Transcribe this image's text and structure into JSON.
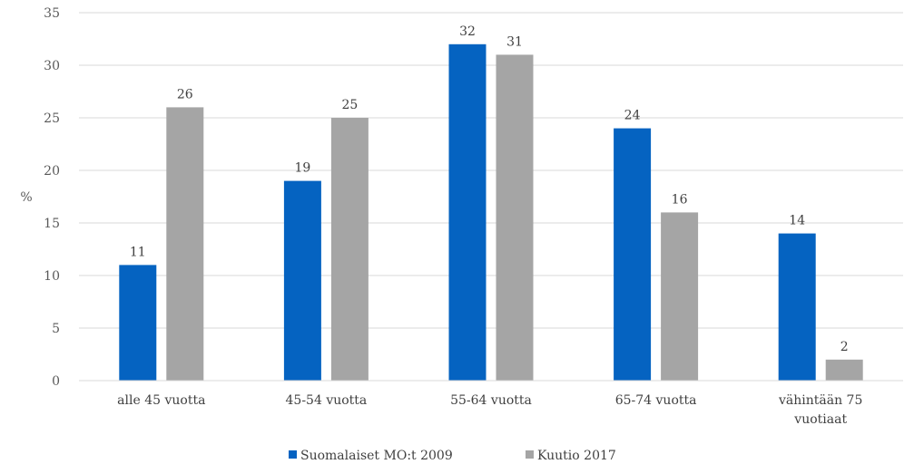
{
  "chart_data": {
    "type": "bar",
    "ylabel": "%",
    "ylim": [
      0,
      35
    ],
    "yticks": [
      0,
      5,
      10,
      15,
      20,
      25,
      30,
      35
    ],
    "grid": true,
    "legend_position": "bottom",
    "categories": [
      [
        "alle 45 vuotta"
      ],
      [
        "45-54 vuotta"
      ],
      [
        "55-64 vuotta"
      ],
      [
        "65-74 vuotta"
      ],
      [
        "vähintään 75",
        "vuotiaat"
      ]
    ],
    "series": [
      {
        "name": "Suomalaiset MO:t 2009",
        "color": "#0563C1",
        "values": [
          11,
          19,
          32,
          24,
          14
        ]
      },
      {
        "name": "Kuutio 2017",
        "color": "#A5A5A5",
        "values": [
          26,
          25,
          31,
          16,
          2
        ]
      }
    ]
  }
}
